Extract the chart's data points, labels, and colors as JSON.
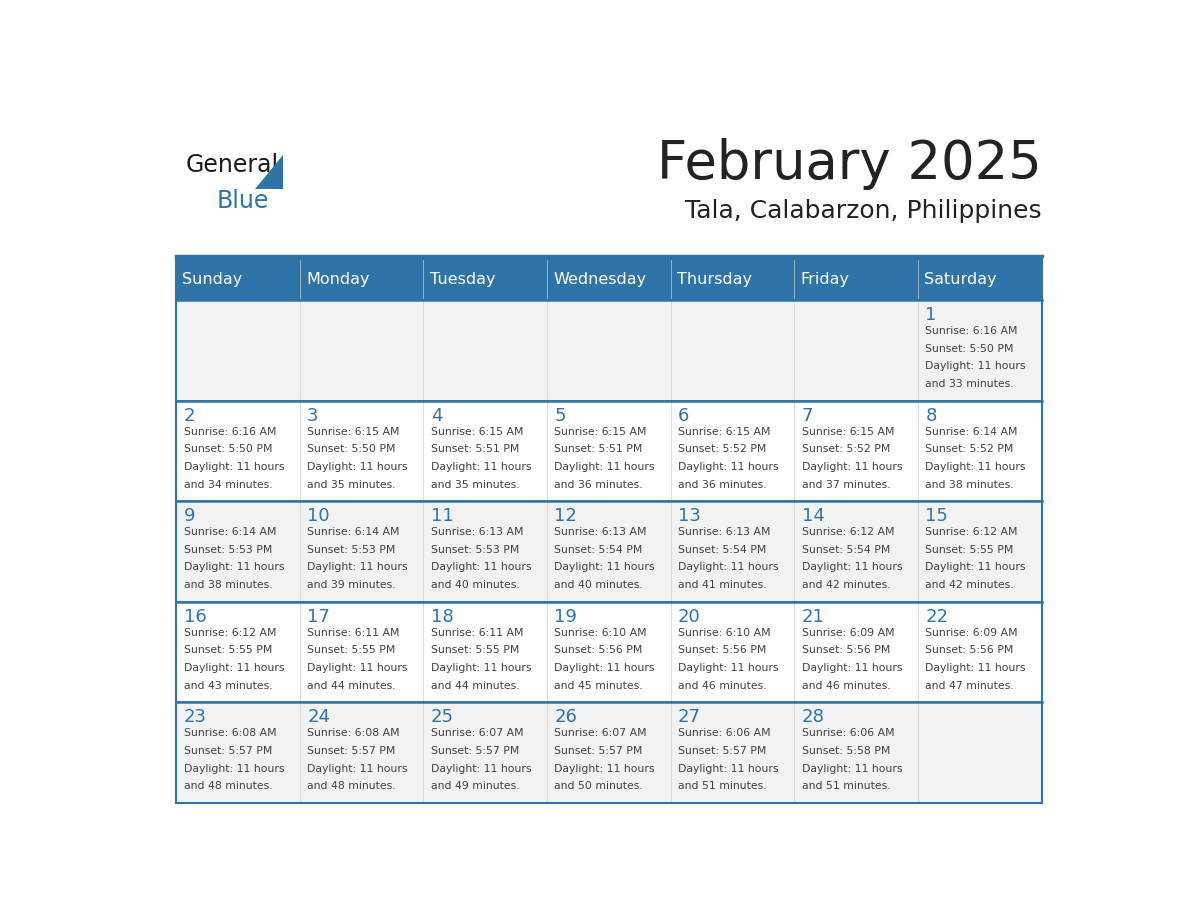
{
  "title": "February 2025",
  "subtitle": "Tala, Calabarzon, Philippines",
  "days_of_week": [
    "Sunday",
    "Monday",
    "Tuesday",
    "Wednesday",
    "Thursday",
    "Friday",
    "Saturday"
  ],
  "header_bg": "#2E74A8",
  "header_text_color": "#FFFFFF",
  "cell_bg_light": "#F2F2F2",
  "cell_bg_white": "#FFFFFF",
  "border_color": "#2E74A8",
  "day_number_color": "#2E74A8",
  "info_text_color": "#404040",
  "title_color": "#222222",
  "subtitle_color": "#222222",
  "logo_general_color": "#1a1a1a",
  "logo_blue_color": "#2E74A8",
  "logo_triangle_color": "#2E74A8",
  "calendar_data": [
    [
      {
        "day": null,
        "sunrise": null,
        "sunset": null,
        "daylight": null
      },
      {
        "day": null,
        "sunrise": null,
        "sunset": null,
        "daylight": null
      },
      {
        "day": null,
        "sunrise": null,
        "sunset": null,
        "daylight": null
      },
      {
        "day": null,
        "sunrise": null,
        "sunset": null,
        "daylight": null
      },
      {
        "day": null,
        "sunrise": null,
        "sunset": null,
        "daylight": null
      },
      {
        "day": null,
        "sunrise": null,
        "sunset": null,
        "daylight": null
      },
      {
        "day": 1,
        "sunrise": "6:16 AM",
        "sunset": "5:50 PM",
        "daylight": "11 hours and 33 minutes."
      }
    ],
    [
      {
        "day": 2,
        "sunrise": "6:16 AM",
        "sunset": "5:50 PM",
        "daylight": "11 hours and 34 minutes."
      },
      {
        "day": 3,
        "sunrise": "6:15 AM",
        "sunset": "5:50 PM",
        "daylight": "11 hours and 35 minutes."
      },
      {
        "day": 4,
        "sunrise": "6:15 AM",
        "sunset": "5:51 PM",
        "daylight": "11 hours and 35 minutes."
      },
      {
        "day": 5,
        "sunrise": "6:15 AM",
        "sunset": "5:51 PM",
        "daylight": "11 hours and 36 minutes."
      },
      {
        "day": 6,
        "sunrise": "6:15 AM",
        "sunset": "5:52 PM",
        "daylight": "11 hours and 36 minutes."
      },
      {
        "day": 7,
        "sunrise": "6:15 AM",
        "sunset": "5:52 PM",
        "daylight": "11 hours and 37 minutes."
      },
      {
        "day": 8,
        "sunrise": "6:14 AM",
        "sunset": "5:52 PM",
        "daylight": "11 hours and 38 minutes."
      }
    ],
    [
      {
        "day": 9,
        "sunrise": "6:14 AM",
        "sunset": "5:53 PM",
        "daylight": "11 hours and 38 minutes."
      },
      {
        "day": 10,
        "sunrise": "6:14 AM",
        "sunset": "5:53 PM",
        "daylight": "11 hours and 39 minutes."
      },
      {
        "day": 11,
        "sunrise": "6:13 AM",
        "sunset": "5:53 PM",
        "daylight": "11 hours and 40 minutes."
      },
      {
        "day": 12,
        "sunrise": "6:13 AM",
        "sunset": "5:54 PM",
        "daylight": "11 hours and 40 minutes."
      },
      {
        "day": 13,
        "sunrise": "6:13 AM",
        "sunset": "5:54 PM",
        "daylight": "11 hours and 41 minutes."
      },
      {
        "day": 14,
        "sunrise": "6:12 AM",
        "sunset": "5:54 PM",
        "daylight": "11 hours and 42 minutes."
      },
      {
        "day": 15,
        "sunrise": "6:12 AM",
        "sunset": "5:55 PM",
        "daylight": "11 hours and 42 minutes."
      }
    ],
    [
      {
        "day": 16,
        "sunrise": "6:12 AM",
        "sunset": "5:55 PM",
        "daylight": "11 hours and 43 minutes."
      },
      {
        "day": 17,
        "sunrise": "6:11 AM",
        "sunset": "5:55 PM",
        "daylight": "11 hours and 44 minutes."
      },
      {
        "day": 18,
        "sunrise": "6:11 AM",
        "sunset": "5:55 PM",
        "daylight": "11 hours and 44 minutes."
      },
      {
        "day": 19,
        "sunrise": "6:10 AM",
        "sunset": "5:56 PM",
        "daylight": "11 hours and 45 minutes."
      },
      {
        "day": 20,
        "sunrise": "6:10 AM",
        "sunset": "5:56 PM",
        "daylight": "11 hours and 46 minutes."
      },
      {
        "day": 21,
        "sunrise": "6:09 AM",
        "sunset": "5:56 PM",
        "daylight": "11 hours and 46 minutes."
      },
      {
        "day": 22,
        "sunrise": "6:09 AM",
        "sunset": "5:56 PM",
        "daylight": "11 hours and 47 minutes."
      }
    ],
    [
      {
        "day": 23,
        "sunrise": "6:08 AM",
        "sunset": "5:57 PM",
        "daylight": "11 hours and 48 minutes."
      },
      {
        "day": 24,
        "sunrise": "6:08 AM",
        "sunset": "5:57 PM",
        "daylight": "11 hours and 48 minutes."
      },
      {
        "day": 25,
        "sunrise": "6:07 AM",
        "sunset": "5:57 PM",
        "daylight": "11 hours and 49 minutes."
      },
      {
        "day": 26,
        "sunrise": "6:07 AM",
        "sunset": "5:57 PM",
        "daylight": "11 hours and 50 minutes."
      },
      {
        "day": 27,
        "sunrise": "6:06 AM",
        "sunset": "5:57 PM",
        "daylight": "11 hours and 51 minutes."
      },
      {
        "day": 28,
        "sunrise": "6:06 AM",
        "sunset": "5:58 PM",
        "daylight": "11 hours and 51 minutes."
      },
      {
        "day": null,
        "sunrise": null,
        "sunset": null,
        "daylight": null
      }
    ]
  ]
}
